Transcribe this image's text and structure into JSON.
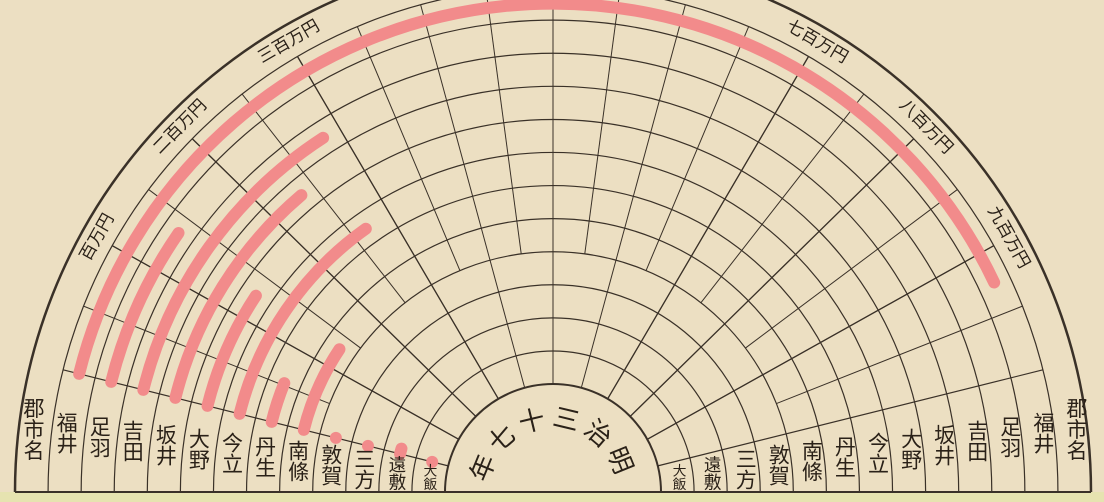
{
  "chart_data": {
    "type": "radial_bar",
    "title": "明治三十七年",
    "header": "郡市名",
    "categories": [
      "福井",
      "足羽",
      "吉田",
      "坂井",
      "大野",
      "今立",
      "丹生",
      "南條",
      "敦賀",
      "三方",
      "遠敷",
      "大飯"
    ],
    "values": [
      925,
      136,
      283,
      235,
      128,
      267,
      53,
      130,
      0,
      0,
      13,
      0
    ],
    "color": "#f28b8b",
    "ylim": [
      0,
      1000
    ],
    "yticks": [
      {
        "value": 100,
        "label": "百万円"
      },
      {
        "value": 200,
        "label": "二百万円"
      },
      {
        "value": 300,
        "label": "三百万円"
      },
      {
        "value": 700,
        "label": "七百万円"
      },
      {
        "value": 800,
        "label": "八百万円"
      },
      {
        "value": 900,
        "label": "九百万円"
      }
    ]
  }
}
